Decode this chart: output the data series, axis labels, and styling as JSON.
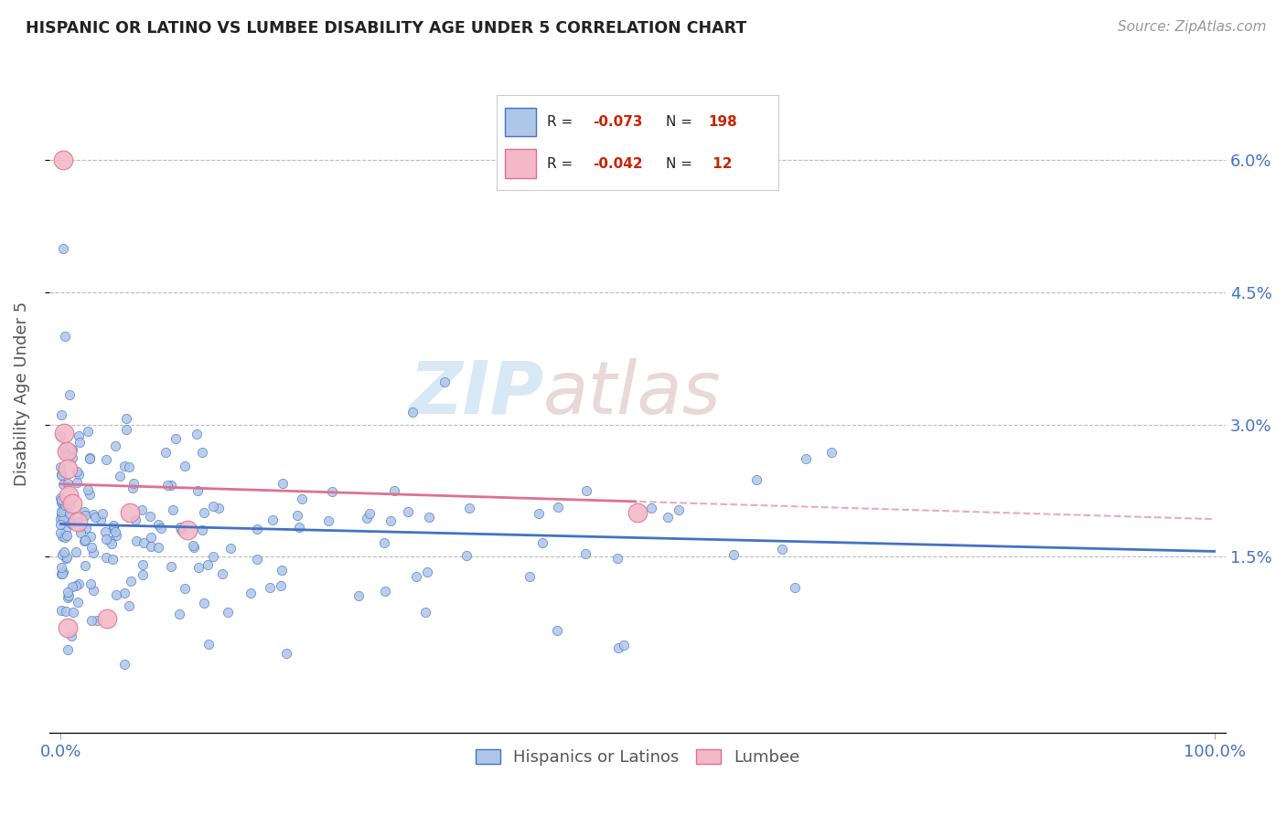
{
  "title": "HISPANIC OR LATINO VS LUMBEE DISABILITY AGE UNDER 5 CORRELATION CHART",
  "source": "Source: ZipAtlas.com",
  "ylabel": "Disability Age Under 5",
  "y_ticks": [
    "1.5%",
    "3.0%",
    "4.5%",
    "6.0%"
  ],
  "y_tick_vals": [
    0.015,
    0.03,
    0.045,
    0.06
  ],
  "watermark_zip": "ZIP",
  "watermark_atlas": "atlas",
  "blue_color": "#aec6e8",
  "pink_color": "#f4b8c8",
  "line_blue": "#4472c4",
  "line_pink": "#e07090",
  "r1": -0.073,
  "n1": 198,
  "r2": -0.042,
  "n2": 12,
  "xlim": [
    -0.01,
    1.01
  ],
  "ylim": [
    -0.005,
    0.072
  ]
}
